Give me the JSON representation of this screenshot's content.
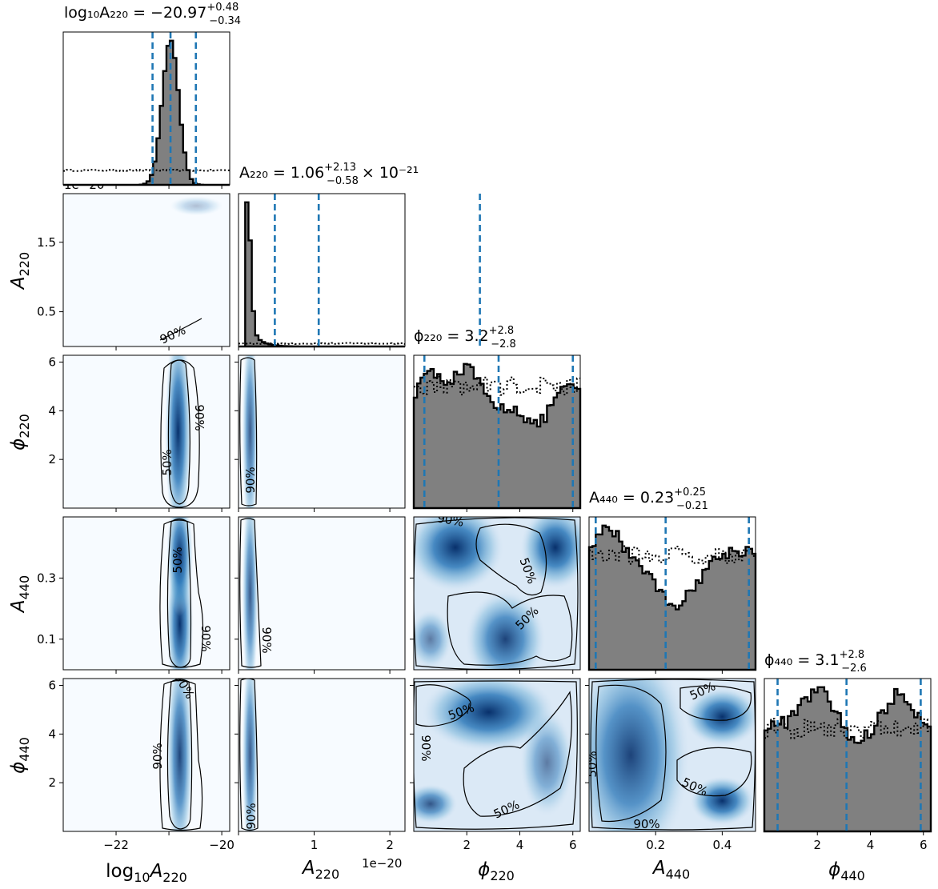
{
  "chart_data": {
    "type": "corner",
    "params": [
      {
        "key": "logA220",
        "sym": "log10A220",
        "xticks": [
          -22,
          -21,
          -20
        ],
        "tick_labels": [
          "−22",
          "",
          "−20"
        ],
        "range": [
          -23.0,
          -19.85
        ]
      },
      {
        "key": "A220",
        "sym": "A220",
        "xticks": [
          0.0,
          1.0,
          2.0
        ],
        "tick_labels": [
          "",
          "1",
          "2"
        ],
        "yticks": [
          0.5,
          1.5
        ],
        "ytick_labels": [
          "0.5",
          "1.5"
        ],
        "range": [
          0.0,
          2.2
        ],
        "offset": "1e−20"
      },
      {
        "key": "phi220",
        "sym": "phi220",
        "xticks": [
          2,
          4,
          6
        ],
        "tick_labels": [
          "2",
          "4",
          "6"
        ],
        "range": [
          0.0,
          6.28
        ]
      },
      {
        "key": "A440",
        "sym": "A440",
        "xticks": [
          0.2,
          0.4
        ],
        "tick_labels": [
          "0.2",
          "0.4"
        ],
        "yticks": [
          0.1,
          0.3
        ],
        "ytick_labels": [
          "0.1",
          "0.3"
        ],
        "range": [
          0.0,
          0.5
        ]
      },
      {
        "key": "phi440",
        "sym": "phi440",
        "xticks": [
          2,
          4,
          6
        ],
        "tick_labels": [
          "2",
          "4",
          "6"
        ],
        "range": [
          0.0,
          6.28
        ]
      }
    ],
    "titles": [
      {
        "name": "log₁₀A₂₂₀",
        "median": "−20.97",
        "plus": "+0.48",
        "minus": "−0.34",
        "suffix": ""
      },
      {
        "name": "A₂₂₀",
        "median": "1.06",
        "plus": "+2.13",
        "minus": "−0.58",
        "suffix": "× 10⁻²¹"
      },
      {
        "name": "ϕ₂₂₀",
        "median": "3.2",
        "plus": "+2.8",
        "minus": "−2.8",
        "suffix": ""
      },
      {
        "name": "A₄₄₀",
        "median": "0.23",
        "plus": "+0.25",
        "minus": "−0.21",
        "suffix": ""
      },
      {
        "name": "ϕ₄₄₀",
        "median": "3.1",
        "plus": "+2.8",
        "minus": "−2.6",
        "suffix": ""
      }
    ],
    "quantiles": [
      [
        -21.31,
        -20.97,
        -20.49
      ],
      [
        0.48,
        1.06,
        3.19
      ],
      [
        0.4,
        3.2,
        6.0
      ],
      [
        0.02,
        0.23,
        0.48
      ],
      [
        0.5,
        3.1,
        5.9
      ]
    ],
    "contour_levels": [
      "50%",
      "90%"
    ],
    "histogram_style": {
      "posterior": "filled gray with black step outline",
      "prior": "black dotted step",
      "quantiles": "blue dashed"
    },
    "density_colormap": "Blues",
    "offset_labels": [
      "1e−20"
    ]
  },
  "colors": {
    "posterior_fill": "#808080",
    "outline": "#000000",
    "quantile": "#1f77b4",
    "density_low": "#f7fbff",
    "density_high": "#08306b"
  }
}
